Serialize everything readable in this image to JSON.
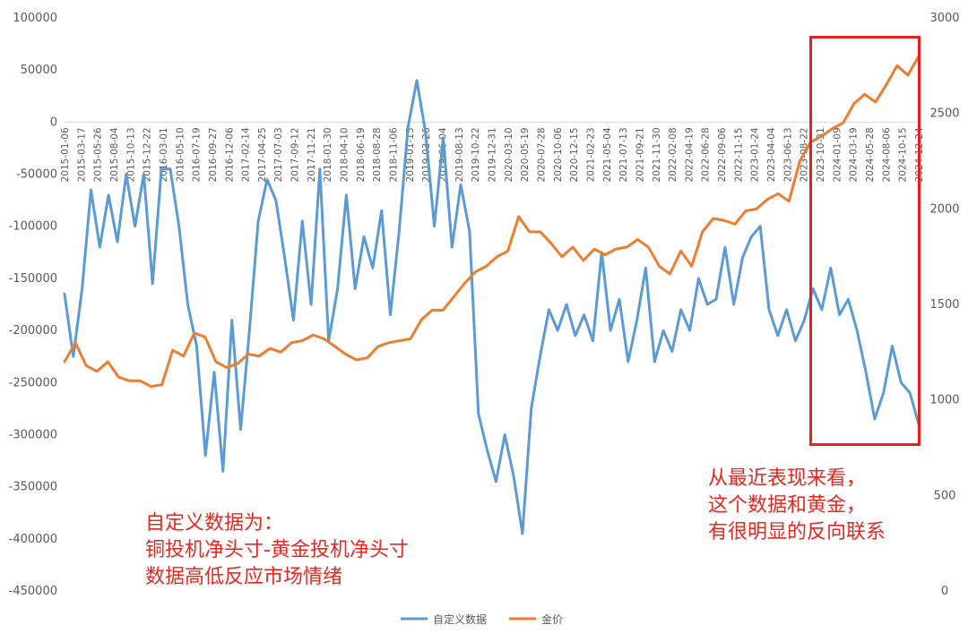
{
  "chart_data": {
    "type": "line",
    "y_left": {
      "ticks": [
        "100000",
        "50000",
        "0",
        "-50000",
        "-100000",
        "-150000",
        "-200000",
        "-250000",
        "-300000",
        "-350000",
        "-400000",
        "-450000"
      ],
      "range": [
        -450000,
        100000
      ]
    },
    "y_right": {
      "ticks": [
        "3000",
        "2500",
        "2000",
        "1500",
        "1000",
        "500",
        "0"
      ],
      "range": [
        0,
        3000
      ]
    },
    "x_tick_labels": [
      "2015-01-06",
      "2015-03-17",
      "2015-05-26",
      "2015-08-04",
      "2015-10-13",
      "2015-12-22",
      "2016-03-01",
      "2016-05-10",
      "2016-07-19",
      "2016-09-27",
      "2016-12-06",
      "2017-02-14",
      "2017-04-25",
      "2017-07-03",
      "2017-09-12",
      "2017-11-21",
      "2018-01-30",
      "2018-04-10",
      "2018-06-19",
      "2018-08-28",
      "2018-11-06",
      "2019-01-15",
      "2019-03-26",
      "2019-06-04",
      "2019-08-13",
      "2019-10-22",
      "2019-12-31",
      "2020-03-10",
      "2020-05-19",
      "2020-07-28",
      "2020-10-06",
      "2020-12-15",
      "2021-02-23",
      "2021-05-04",
      "2021-07-13",
      "2021-09-21",
      "2021-11-30",
      "2022-02-08",
      "2022-04-19",
      "2022-06-28",
      "2022-09-06",
      "2022-11-15",
      "2023-01-24",
      "2023-04-04",
      "2023-06-13",
      "2023-08-22",
      "2023-10-31",
      "2024-01-09",
      "2024-03-19",
      "2024-05-28",
      "2024-08-06",
      "2024-10-15",
      "2024-12-24"
    ],
    "series": [
      {
        "name": "自定义数据",
        "color": "#5b9bd5",
        "axis": "left",
        "values": [
          -165000,
          -225000,
          -160000,
          -65000,
          -120000,
          -70000,
          -115000,
          -50000,
          -100000,
          -50000,
          -155000,
          -45000,
          -45000,
          -100000,
          -175000,
          -215000,
          -320000,
          -240000,
          -335000,
          -190000,
          -295000,
          -200000,
          -95000,
          -55000,
          -75000,
          -130000,
          -190000,
          -95000,
          -175000,
          -45000,
          -210000,
          -160000,
          -70000,
          -160000,
          -110000,
          -140000,
          -85000,
          -185000,
          -105000,
          -5000,
          40000,
          -10000,
          -100000,
          -15000,
          -120000,
          -60000,
          -105000,
          -280000,
          -315000,
          -345000,
          -300000,
          -340000,
          -395000,
          -275000,
          -225000,
          -180000,
          -200000,
          -175000,
          -205000,
          -185000,
          -210000,
          -125000,
          -200000,
          -170000,
          -230000,
          -190000,
          -140000,
          -230000,
          -200000,
          -220000,
          -180000,
          -200000,
          -150000,
          -175000,
          -170000,
          -120000,
          -175000,
          -130000,
          -110000,
          -100000,
          -180000,
          -205000,
          -180000,
          -210000,
          -190000,
          -160000,
          -180000,
          -140000,
          -185000,
          -170000,
          -200000,
          -240000,
          -285000,
          -260000,
          -215000,
          -250000,
          -260000,
          -290000
        ]
      },
      {
        "name": "金价",
        "color": "#ed7d31",
        "axis": "right",
        "values": [
          1200,
          1300,
          1180,
          1150,
          1200,
          1120,
          1100,
          1100,
          1070,
          1080,
          1260,
          1230,
          1350,
          1330,
          1200,
          1170,
          1190,
          1240,
          1230,
          1270,
          1250,
          1300,
          1310,
          1340,
          1320,
          1280,
          1240,
          1210,
          1220,
          1280,
          1300,
          1310,
          1320,
          1420,
          1470,
          1470,
          1540,
          1610,
          1670,
          1700,
          1750,
          1780,
          1960,
          1880,
          1880,
          1820,
          1750,
          1800,
          1730,
          1790,
          1760,
          1790,
          1800,
          1840,
          1800,
          1700,
          1660,
          1780,
          1700,
          1880,
          1950,
          1940,
          1920,
          1990,
          2000,
          2050,
          2080,
          2040,
          2250,
          2350,
          2380,
          2420,
          2450,
          2550,
          2600,
          2560,
          2650,
          2750,
          2700,
          2800
        ]
      }
    ],
    "legend": {
      "position": "bottom"
    }
  },
  "legend_labels": {
    "series1": "自定义数据",
    "series2": "金价"
  },
  "annotations": {
    "left": [
      "自定义数据为：",
      "铜投机净头寸-黄金投机净头寸",
      "数据高低反应市场情绪"
    ],
    "right": [
      "从最近表现来看，",
      "这个数据和黄金，",
      "有很明显的反向联系"
    ]
  },
  "colors": {
    "series1": "#5b9bd5",
    "series2": "#ed7d31",
    "annotation": "#e8271f",
    "highlight": "#ee1c1c"
  }
}
